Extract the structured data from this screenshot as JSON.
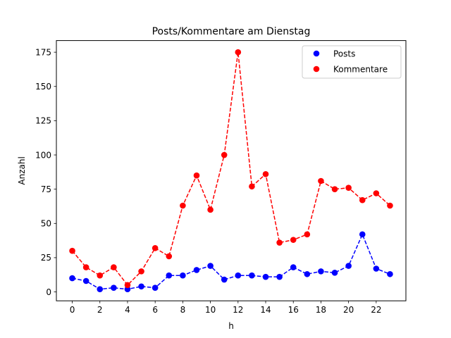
{
  "chart_data": {
    "type": "line",
    "title": "Posts/Kommentare am Dienstag",
    "xlabel": "h",
    "ylabel": "Anzahl",
    "x": [
      0,
      1,
      2,
      3,
      4,
      5,
      6,
      7,
      8,
      9,
      10,
      11,
      12,
      13,
      14,
      15,
      16,
      17,
      18,
      19,
      20,
      21,
      22,
      23
    ],
    "xlim": [
      -1.15,
      24.15
    ],
    "ylim": [
      -6.5,
      183.5
    ],
    "xticks": [
      0,
      2,
      4,
      6,
      8,
      10,
      12,
      14,
      16,
      18,
      20,
      22
    ],
    "yticks": [
      0,
      25,
      50,
      75,
      100,
      125,
      150,
      175
    ],
    "grid": false,
    "legend_position": "top-right",
    "series": [
      {
        "name": "Posts",
        "color": "#0000ff",
        "values": [
          10,
          8,
          2,
          3,
          2,
          4,
          3,
          12,
          12,
          16,
          19,
          9,
          12,
          12,
          11,
          11,
          18,
          13,
          15,
          14,
          19,
          42,
          17,
          13
        ]
      },
      {
        "name": "Kommentare",
        "color": "#ff0000",
        "values": [
          30,
          18,
          12,
          18,
          5,
          15,
          32,
          26,
          63,
          85,
          60,
          100,
          175,
          77,
          86,
          36,
          38,
          42,
          81,
          75,
          76,
          67,
          72,
          63
        ]
      }
    ]
  }
}
